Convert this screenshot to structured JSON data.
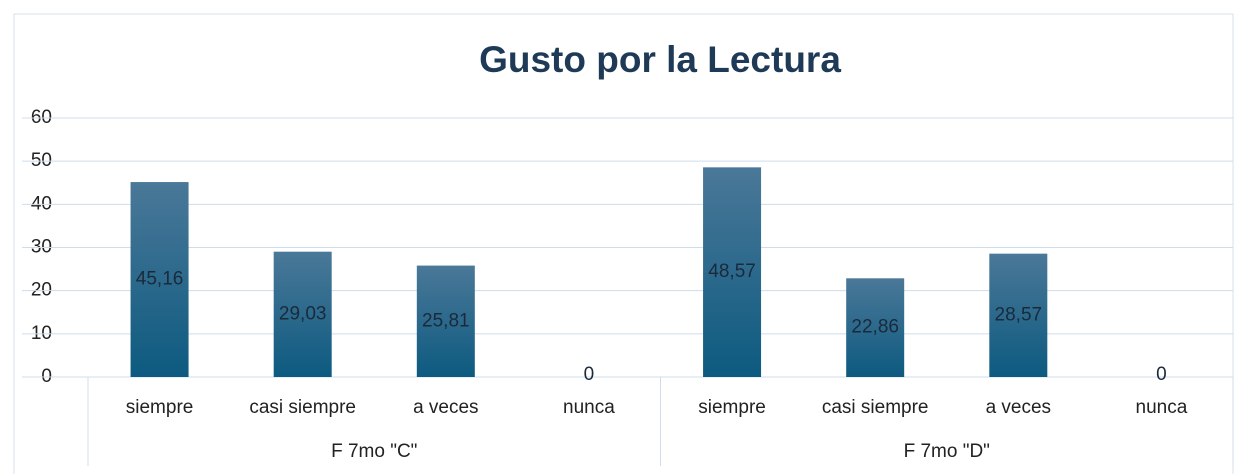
{
  "chart_data": {
    "type": "bar",
    "title": "Gusto por la Lectura",
    "categories": [
      "siempre",
      "casi siempre",
      "a veces",
      "nunca",
      "siempre",
      "casi siempre",
      "a veces",
      "nunca"
    ],
    "groups": [
      "F 7mo \"C\"",
      "F 7mo \"D\""
    ],
    "values": [
      45.16,
      29.03,
      25.81,
      0,
      48.57,
      22.86,
      28.57,
      0
    ],
    "value_labels": [
      "45,16",
      "29,03",
      "25,81",
      "0",
      "48,57",
      "22,86",
      "28,57",
      "0"
    ],
    "color": "#135f85",
    "ylim": [
      0,
      60
    ],
    "yticks": [
      0,
      10,
      20,
      30,
      40,
      50,
      60
    ],
    "grid": true
  }
}
